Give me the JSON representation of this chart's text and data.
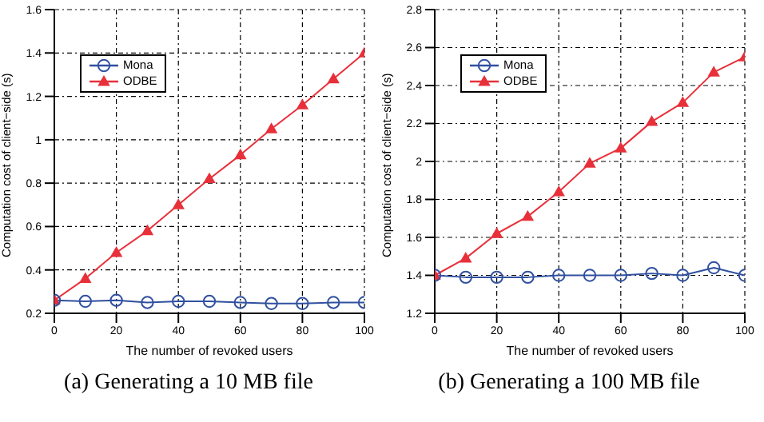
{
  "chart_data": [
    {
      "type": "line",
      "xlabel": "The number of revoked users",
      "ylabel": "Computation cost of client−side (s)",
      "annotations": [
        "(a) Generating a 10 MB file"
      ],
      "x": [
        0,
        10,
        20,
        30,
        40,
        50,
        60,
        70,
        80,
        90,
        100
      ],
      "xlim": [
        0,
        100
      ],
      "xticks": [
        0,
        20,
        40,
        60,
        80,
        100
      ],
      "ylim": [
        0.2,
        1.6
      ],
      "yticks": [
        0.2,
        0.4,
        0.6,
        0.8,
        1,
        1.2,
        1.4,
        1.6
      ],
      "grid": true,
      "legend": "top left",
      "series": [
        {
          "name": "Mona",
          "color": "#3050a0",
          "marker": "circle",
          "values": [
            0.26,
            0.255,
            0.26,
            0.25,
            0.255,
            0.255,
            0.25,
            0.245,
            0.245,
            0.25,
            0.25
          ]
        },
        {
          "name": "ODBE",
          "color": "#e8303a",
          "marker": "triangle",
          "values": [
            0.26,
            0.36,
            0.48,
            0.58,
            0.7,
            0.82,
            0.93,
            1.05,
            1.16,
            1.28,
            1.4
          ]
        }
      ]
    },
    {
      "type": "line",
      "xlabel": "The number of revoked users",
      "ylabel": "Computation cost of client−side (s)",
      "annotations": [
        "(b) Generating a 100 MB file"
      ],
      "x": [
        0,
        10,
        20,
        30,
        40,
        50,
        60,
        70,
        80,
        90,
        100
      ],
      "xlim": [
        0,
        100
      ],
      "xticks": [
        0,
        20,
        40,
        60,
        80,
        100
      ],
      "ylim": [
        1.2,
        2.8
      ],
      "yticks": [
        1.2,
        1.4,
        1.6,
        1.8,
        2,
        2.2,
        2.4,
        2.6,
        2.8
      ],
      "grid": true,
      "legend": "top left",
      "series": [
        {
          "name": "Mona",
          "color": "#3050a0",
          "marker": "circle",
          "values": [
            1.4,
            1.39,
            1.39,
            1.39,
            1.4,
            1.4,
            1.4,
            1.41,
            1.4,
            1.44,
            1.4
          ]
        },
        {
          "name": "ODBE",
          "color": "#e8303a",
          "marker": "triangle",
          "values": [
            1.4,
            1.49,
            1.62,
            1.71,
            1.84,
            1.99,
            2.07,
            2.21,
            2.31,
            2.47,
            2.55
          ]
        }
      ]
    }
  ]
}
